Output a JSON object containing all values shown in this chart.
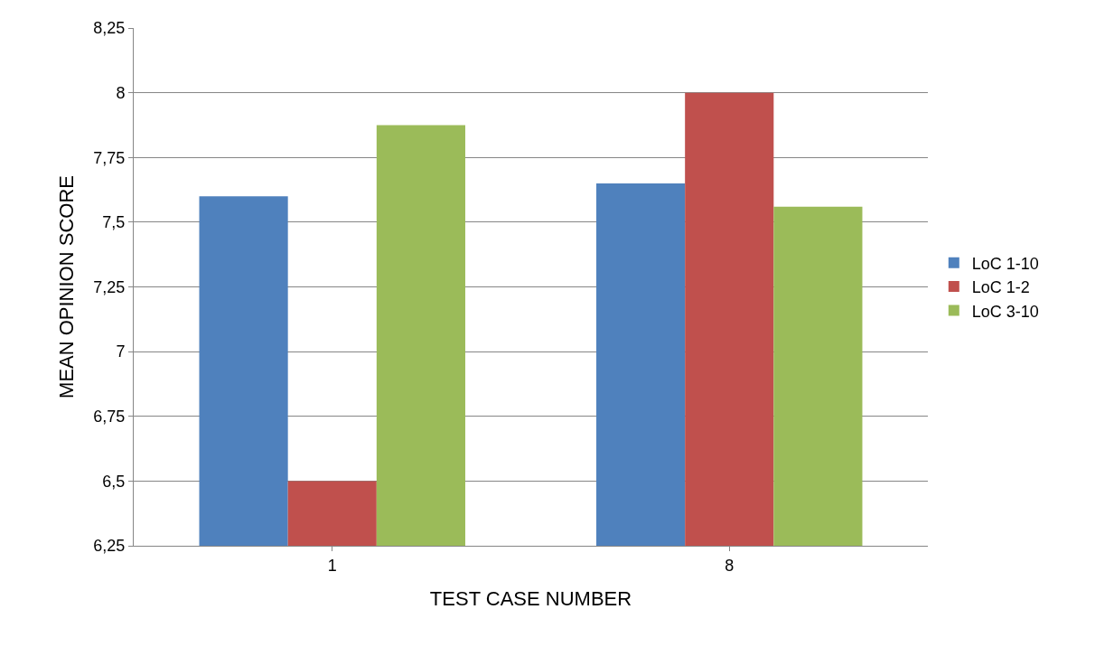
{
  "chart_data": {
    "type": "bar",
    "xlabel": "TEST CASE NUMBER",
    "ylabel": "MEAN OPINION SCORE",
    "categories": [
      "1",
      "8"
    ],
    "series": [
      {
        "name": "LoC 1-10",
        "color": "#4f81bd",
        "values": [
          7.6,
          7.65
        ]
      },
      {
        "name": "LoC 1-2",
        "color": "#c0504d",
        "values": [
          6.5,
          8.0
        ]
      },
      {
        "name": "LoC 3-10",
        "color": "#9bbb59",
        "values": [
          7.875,
          7.56
        ]
      }
    ],
    "ylim": [
      6.25,
      8.25
    ],
    "yticks": [
      {
        "value": 6.25,
        "label": "6,25"
      },
      {
        "value": 6.5,
        "label": "6,5"
      },
      {
        "value": 6.75,
        "label": "6,75"
      },
      {
        "value": 7,
        "label": "7"
      },
      {
        "value": 7.25,
        "label": "7,25"
      },
      {
        "value": 7.5,
        "label": "7,5"
      },
      {
        "value": 7.75,
        "label": "7,75"
      },
      {
        "value": 8,
        "label": "8"
      },
      {
        "value": 8.25,
        "label": "8,25"
      }
    ],
    "grid": "y",
    "legend": "right"
  }
}
